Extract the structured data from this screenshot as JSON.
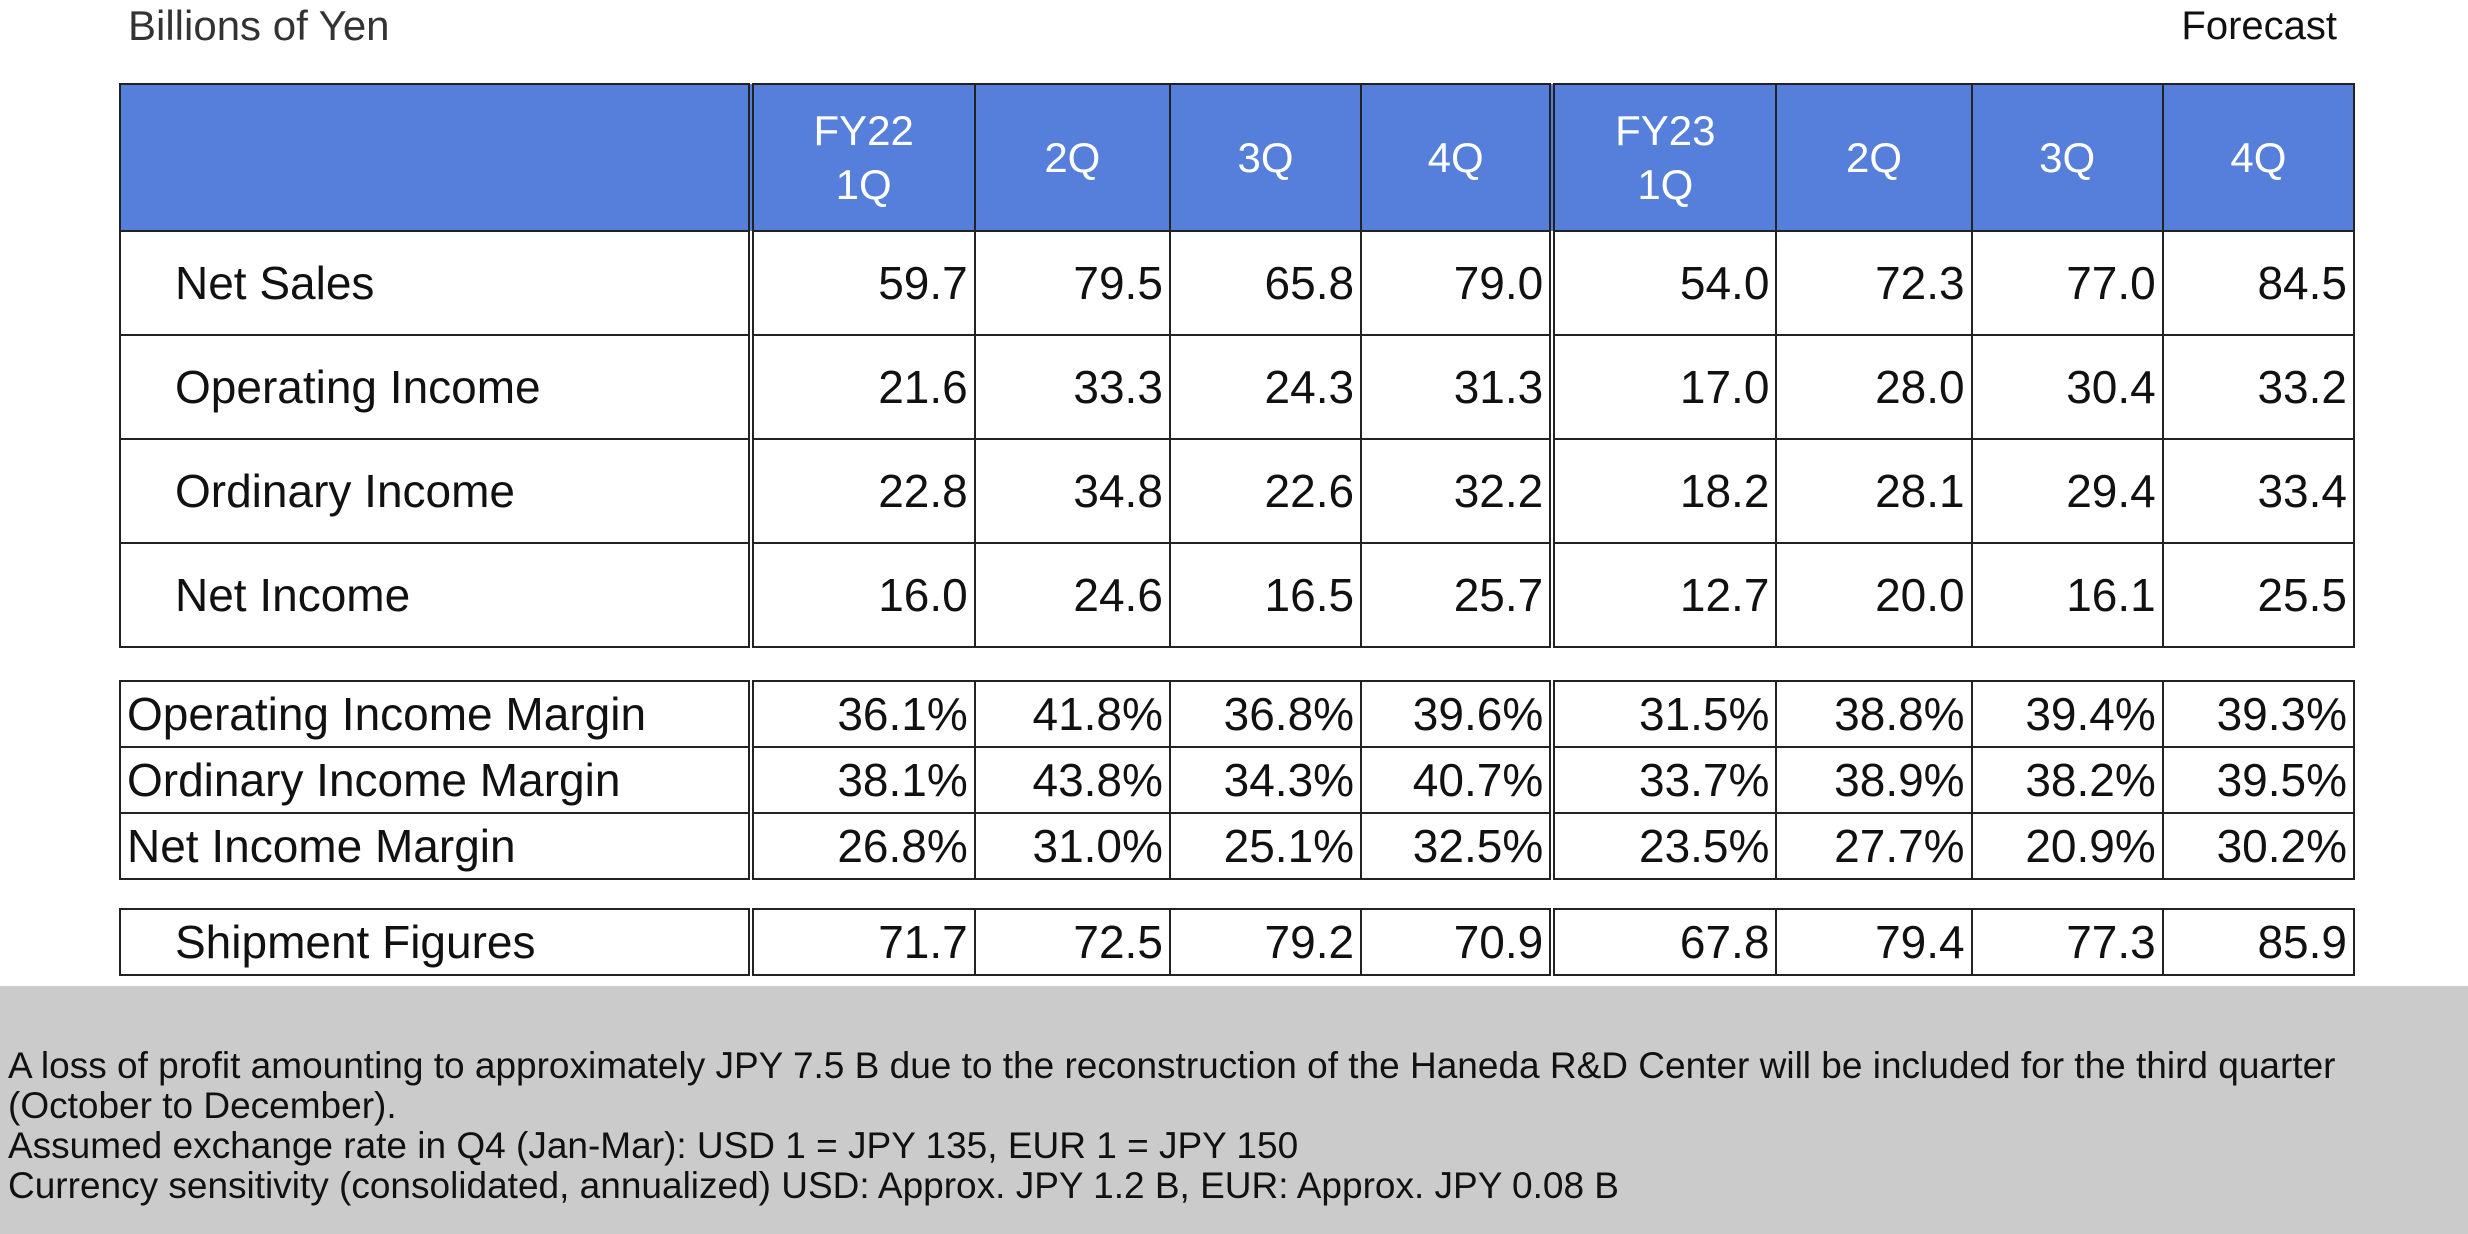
{
  "header": {
    "unit_label": "Billions of Yen",
    "forecast_label": "Forecast"
  },
  "columns": [
    {
      "line1": "FY22",
      "line2": "1Q"
    },
    {
      "line1": "",
      "line2": "2Q"
    },
    {
      "line1": "",
      "line2": "3Q"
    },
    {
      "line1": "",
      "line2": "4Q"
    },
    {
      "line1": "FY23",
      "line2": "1Q"
    },
    {
      "line1": "",
      "line2": "2Q"
    },
    {
      "line1": "",
      "line2": "3Q"
    },
    {
      "line1": "",
      "line2": "4Q"
    }
  ],
  "main_rows": [
    {
      "label": "Net Sales",
      "values": [
        "59.7",
        "79.5",
        "65.8",
        "79.0",
        "54.0",
        "72.3",
        "77.0",
        "84.5"
      ]
    },
    {
      "label": "Operating Income",
      "values": [
        "21.6",
        "33.3",
        "24.3",
        "31.3",
        "17.0",
        "28.0",
        "30.4",
        "33.2"
      ]
    },
    {
      "label": "Ordinary  Income",
      "values": [
        "22.8",
        "34.8",
        "22.6",
        "32.2",
        "18.2",
        "28.1",
        "29.4",
        "33.4"
      ]
    },
    {
      "label": "Net Income",
      "values": [
        "16.0",
        "24.6",
        "16.5",
        "25.7",
        "12.7",
        "20.0",
        "16.1",
        "25.5"
      ]
    }
  ],
  "margin_rows": [
    {
      "label": "Operating Income Margin",
      "values": [
        "36.1%",
        "41.8%",
        "36.8%",
        "39.6%",
        "31.5%",
        "38.8%",
        "39.4%",
        "39.3%"
      ]
    },
    {
      "label": "Ordinary Income Margin",
      "values": [
        "38.1%",
        "43.8%",
        "34.3%",
        "40.7%",
        "33.7%",
        "38.9%",
        "38.2%",
        "39.5%"
      ]
    },
    {
      "label": "Net Income Margin",
      "values": [
        "26.8%",
        "31.0%",
        "25.1%",
        "32.5%",
        "23.5%",
        "27.7%",
        "20.9%",
        "30.2%"
      ]
    }
  ],
  "shipment_row": {
    "label": "Shipment Figures",
    "values": [
      "71.7",
      "72.5",
      "79.2",
      "70.9",
      "67.8",
      "79.4",
      "77.3",
      "85.9"
    ]
  },
  "notes": [
    "A loss of profit amounting to approximately JPY 7.5 B due to the reconstruction of the Haneda R&D Center will be included for the third quarter (October to December).",
    "Assumed exchange rate in Q4 (Jan-Mar): USD 1 = JPY 135, EUR 1 = JPY 150",
    "Currency sensitivity (consolidated, annualized) USD: Approx. JPY 1.2 B, EUR: Approx. JPY 0.08 B"
  ],
  "colors": {
    "header_bg": "#557fdb",
    "notes_bg": "#cbcbcb"
  }
}
